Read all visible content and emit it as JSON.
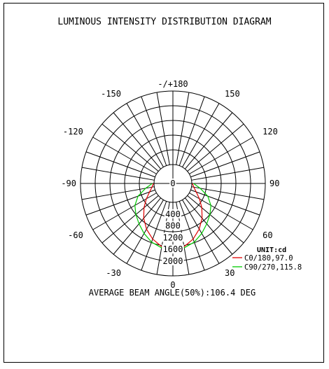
{
  "chart_data": {
    "type": "polar",
    "title": "LUMINOUS INTENSITY DISTRIBUTION DIAGRAM",
    "unit_label": "UNIT:cd",
    "footer": "AVERAGE BEAM ANGLE(50%):106.4 DEG",
    "radial_range": [
      0,
      2500
    ],
    "radial_ticks": [
      "0",
      "400",
      "800",
      "1200",
      "1600",
      "2000"
    ],
    "radial_tick_values": [
      0,
      400,
      800,
      1200,
      1600,
      2000
    ],
    "angle_ticks": [
      {
        "label": "-/+180",
        "angle": 180
      },
      {
        "label": "150",
        "angle": 150
      },
      {
        "label": "120",
        "angle": 120
      },
      {
        "label": "90",
        "angle": 90
      },
      {
        "label": "60",
        "angle": 60
      },
      {
        "label": "30",
        "angle": 30
      },
      {
        "label": "0",
        "angle": 0
      },
      {
        "label": "-30",
        "angle": -30
      },
      {
        "label": "-60",
        "angle": -60
      },
      {
        "label": "-90",
        "angle": -90
      },
      {
        "label": "-120",
        "angle": -120
      },
      {
        "label": "-150",
        "angle": -150
      }
    ],
    "grid": true,
    "legend_position": "bottom-right",
    "series": [
      {
        "name": "C0/180,97.0",
        "color": "#e00000",
        "angles": [
          -90,
          -80,
          -70,
          -60,
          -50,
          -40,
          -30,
          -20,
          -10,
          0,
          10,
          20,
          30,
          40,
          50,
          60,
          70,
          80,
          90
        ],
        "values": [
          20,
          80,
          200,
          400,
          640,
          900,
          1150,
          1370,
          1540,
          1600,
          1540,
          1370,
          1150,
          900,
          640,
          400,
          200,
          80,
          20
        ]
      },
      {
        "name": "C90/270,115.8",
        "color": "#00cc00",
        "angles": [
          -90,
          -80,
          -70,
          -60,
          -50,
          -40,
          -30,
          -20,
          -10,
          0,
          10,
          20,
          30,
          40,
          50,
          60,
          70,
          80,
          90
        ],
        "values": [
          60,
          300,
          620,
          850,
          1000,
          1150,
          1320,
          1480,
          1580,
          1600,
          1580,
          1480,
          1320,
          1150,
          1000,
          850,
          620,
          300,
          60
        ]
      }
    ]
  }
}
